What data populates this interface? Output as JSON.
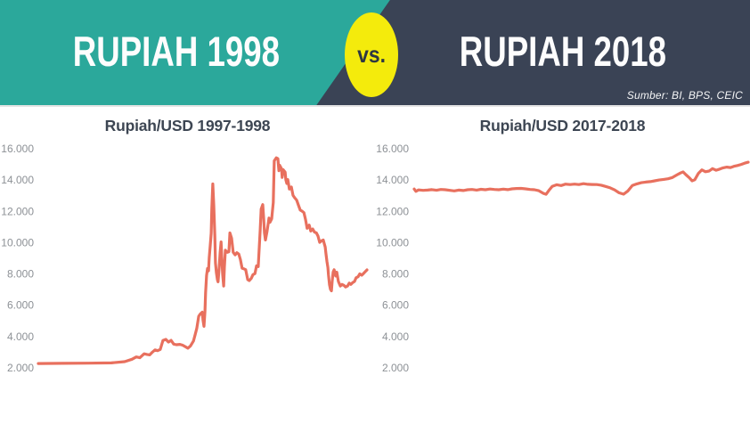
{
  "header": {
    "left_title": "RUPIAH 1998",
    "vs_label": "vs.",
    "right_title": "RUPIAH 2018",
    "source": "Sumber: BI, BPS, CEIC"
  },
  "colors": {
    "teal": "#2BA89B",
    "navy": "#3A4355",
    "yellow": "#F4EB0C",
    "line": "#E8705E",
    "title_text": "#3D4653",
    "axis_text": "#8D9196"
  },
  "chart_data": [
    {
      "type": "line",
      "title": "Rupiah/USD 1997-1998",
      "series_name": "Rupiah per USD",
      "x_period": "1997-1998",
      "x_axis_labels": "none",
      "grid": false,
      "legend": false,
      "ylim": [
        2000,
        16000
      ],
      "y_tick_labels": [
        "16.000",
        "14.000",
        "12.000",
        "10.000",
        "8.000",
        "6.000",
        "4.000",
        "2.000"
      ],
      "y_tick_values": [
        16000,
        14000,
        12000,
        10000,
        8000,
        6000,
        4000,
        2000
      ],
      "points": [
        [
          0,
          2280
        ],
        [
          0.073,
          2290
        ],
        [
          0.154,
          2300
        ],
        [
          0.222,
          2320
        ],
        [
          0.263,
          2400
        ],
        [
          0.285,
          2550
        ],
        [
          0.298,
          2700
        ],
        [
          0.309,
          2650
        ],
        [
          0.322,
          2900
        ],
        [
          0.331,
          2860
        ],
        [
          0.339,
          2830
        ],
        [
          0.347,
          3000
        ],
        [
          0.355,
          3150
        ],
        [
          0.363,
          3100
        ],
        [
          0.371,
          3180
        ],
        [
          0.379,
          3750
        ],
        [
          0.388,
          3820
        ],
        [
          0.396,
          3650
        ],
        [
          0.404,
          3760
        ],
        [
          0.412,
          3520
        ],
        [
          0.42,
          3480
        ],
        [
          0.431,
          3500
        ],
        [
          0.439,
          3450
        ],
        [
          0.447,
          3360
        ],
        [
          0.455,
          3260
        ],
        [
          0.463,
          3400
        ],
        [
          0.472,
          3720
        ],
        [
          0.477,
          4100
        ],
        [
          0.482,
          4520
        ],
        [
          0.488,
          5300
        ],
        [
          0.493,
          5450
        ],
        [
          0.499,
          5560
        ],
        [
          0.501,
          5050
        ],
        [
          0.504,
          4650
        ],
        [
          0.507,
          5600
        ],
        [
          0.509,
          6800
        ],
        [
          0.512,
          7900
        ],
        [
          0.515,
          8350
        ],
        [
          0.518,
          8200
        ],
        [
          0.52,
          9050
        ],
        [
          0.523,
          9800
        ],
        [
          0.526,
          10600
        ],
        [
          0.528,
          12200
        ],
        [
          0.531,
          13750
        ],
        [
          0.534,
          12400
        ],
        [
          0.537,
          10400
        ],
        [
          0.539,
          8700
        ],
        [
          0.542,
          8050
        ],
        [
          0.545,
          7620
        ],
        [
          0.547,
          7500
        ],
        [
          0.55,
          8350
        ],
        [
          0.553,
          9350
        ],
        [
          0.556,
          10050
        ],
        [
          0.558,
          9150
        ],
        [
          0.561,
          7950
        ],
        [
          0.564,
          7230
        ],
        [
          0.566,
          8400
        ],
        [
          0.569,
          9520
        ],
        [
          0.575,
          9380
        ],
        [
          0.58,
          9420
        ],
        [
          0.583,
          10620
        ],
        [
          0.588,
          10280
        ],
        [
          0.593,
          9380
        ],
        [
          0.599,
          9220
        ],
        [
          0.604,
          9360
        ],
        [
          0.61,
          9270
        ],
        [
          0.615,
          8920
        ],
        [
          0.62,
          8370
        ],
        [
          0.626,
          8320
        ],
        [
          0.631,
          8280
        ],
        [
          0.637,
          7640
        ],
        [
          0.642,
          7580
        ],
        [
          0.648,
          7720
        ],
        [
          0.653,
          7960
        ],
        [
          0.659,
          8020
        ],
        [
          0.664,
          8520
        ],
        [
          0.669,
          8470
        ],
        [
          0.675,
          10800
        ],
        [
          0.678,
          12150
        ],
        [
          0.683,
          12430
        ],
        [
          0.686,
          11480
        ],
        [
          0.688,
          10620
        ],
        [
          0.691,
          10170
        ],
        [
          0.696,
          10720
        ],
        [
          0.702,
          11570
        ],
        [
          0.705,
          11300
        ],
        [
          0.71,
          11520
        ],
        [
          0.715,
          12560
        ],
        [
          0.718,
          15230
        ],
        [
          0.724,
          15420
        ],
        [
          0.729,
          15360
        ],
        [
          0.732,
          14600
        ],
        [
          0.734,
          14960
        ],
        [
          0.74,
          14720
        ],
        [
          0.742,
          14170
        ],
        [
          0.745,
          14660
        ],
        [
          0.751,
          14510
        ],
        [
          0.753,
          14020
        ],
        [
          0.756,
          13780
        ],
        [
          0.759,
          14030
        ],
        [
          0.764,
          13420
        ],
        [
          0.77,
          13560
        ],
        [
          0.775,
          13020
        ],
        [
          0.78,
          12870
        ],
        [
          0.786,
          12720
        ],
        [
          0.791,
          12420
        ],
        [
          0.797,
          12080
        ],
        [
          0.802,
          12020
        ],
        [
          0.808,
          11920
        ],
        [
          0.813,
          11480
        ],
        [
          0.818,
          10920
        ],
        [
          0.824,
          11120
        ],
        [
          0.829,
          10740
        ],
        [
          0.835,
          10870
        ],
        [
          0.84,
          10680
        ],
        [
          0.846,
          10620
        ],
        [
          0.851,
          10420
        ],
        [
          0.856,
          10020
        ],
        [
          0.862,
          10120
        ],
        [
          0.867,
          10170
        ],
        [
          0.873,
          9720
        ],
        [
          0.875,
          9320
        ],
        [
          0.878,
          8820
        ],
        [
          0.881,
          8420
        ],
        [
          0.883,
          7920
        ],
        [
          0.886,
          7320
        ],
        [
          0.889,
          7020
        ],
        [
          0.892,
          6920
        ],
        [
          0.894,
          7520
        ],
        [
          0.897,
          8120
        ],
        [
          0.9,
          8270
        ],
        [
          0.905,
          7870
        ],
        [
          0.908,
          8120
        ],
        [
          0.913,
          7520
        ],
        [
          0.919,
          7230
        ],
        [
          0.924,
          7330
        ],
        [
          0.93,
          7270
        ],
        [
          0.935,
          7170
        ],
        [
          0.941,
          7230
        ],
        [
          0.946,
          7420
        ],
        [
          0.951,
          7330
        ],
        [
          0.957,
          7460
        ],
        [
          0.962,
          7520
        ],
        [
          0.967,
          7760
        ],
        [
          0.973,
          7820
        ],
        [
          0.978,
          8010
        ],
        [
          0.984,
          7920
        ],
        [
          0.989,
          8020
        ],
        [
          0.995,
          8160
        ],
        [
          1,
          8260
        ]
      ]
    },
    {
      "type": "line",
      "title": "Rupiah/USD 2017-2018",
      "series_name": "Rupiah per USD",
      "x_period": "2017-2018",
      "x_axis_labels": "none",
      "grid": false,
      "legend": false,
      "ylim": [
        2000,
        16000
      ],
      "y_tick_labels": [
        "16.000",
        "14.000",
        "12.000",
        "10.000",
        "8.000",
        "6.000",
        "4.000",
        "2.000"
      ],
      "y_tick_values": [
        16000,
        14000,
        12000,
        10000,
        8000,
        6000,
        4000,
        2000
      ],
      "points": [
        [
          0,
          13430
        ],
        [
          0.005,
          13280
        ],
        [
          0.013,
          13370
        ],
        [
          0.027,
          13340
        ],
        [
          0.04,
          13360
        ],
        [
          0.053,
          13390
        ],
        [
          0.067,
          13350
        ],
        [
          0.08,
          13400
        ],
        [
          0.093,
          13380
        ],
        [
          0.107,
          13340
        ],
        [
          0.12,
          13310
        ],
        [
          0.133,
          13360
        ],
        [
          0.147,
          13330
        ],
        [
          0.16,
          13380
        ],
        [
          0.173,
          13400
        ],
        [
          0.187,
          13360
        ],
        [
          0.2,
          13410
        ],
        [
          0.213,
          13380
        ],
        [
          0.227,
          13430
        ],
        [
          0.24,
          13400
        ],
        [
          0.253,
          13380
        ],
        [
          0.267,
          13420
        ],
        [
          0.28,
          13390
        ],
        [
          0.293,
          13440
        ],
        [
          0.307,
          13460
        ],
        [
          0.32,
          13470
        ],
        [
          0.333,
          13440
        ],
        [
          0.347,
          13400
        ],
        [
          0.36,
          13380
        ],
        [
          0.373,
          13320
        ],
        [
          0.387,
          13150
        ],
        [
          0.395,
          13090
        ],
        [
          0.403,
          13330
        ],
        [
          0.413,
          13590
        ],
        [
          0.427,
          13700
        ],
        [
          0.44,
          13650
        ],
        [
          0.453,
          13740
        ],
        [
          0.467,
          13710
        ],
        [
          0.48,
          13740
        ],
        [
          0.493,
          13710
        ],
        [
          0.507,
          13770
        ],
        [
          0.52,
          13730
        ],
        [
          0.533,
          13720
        ],
        [
          0.547,
          13710
        ],
        [
          0.56,
          13670
        ],
        [
          0.573,
          13590
        ],
        [
          0.587,
          13500
        ],
        [
          0.6,
          13370
        ],
        [
          0.613,
          13190
        ],
        [
          0.627,
          13100
        ],
        [
          0.64,
          13310
        ],
        [
          0.653,
          13650
        ],
        [
          0.667,
          13760
        ],
        [
          0.68,
          13830
        ],
        [
          0.693,
          13870
        ],
        [
          0.707,
          13900
        ],
        [
          0.72,
          13950
        ],
        [
          0.733,
          14000
        ],
        [
          0.747,
          14040
        ],
        [
          0.76,
          14080
        ],
        [
          0.773,
          14160
        ],
        [
          0.787,
          14330
        ],
        [
          0.797,
          14450
        ],
        [
          0.805,
          14520
        ],
        [
          0.813,
          14350
        ],
        [
          0.824,
          14140
        ],
        [
          0.832,
          13950
        ],
        [
          0.84,
          14020
        ],
        [
          0.851,
          14430
        ],
        [
          0.861,
          14650
        ],
        [
          0.872,
          14530
        ],
        [
          0.883,
          14580
        ],
        [
          0.893,
          14730
        ],
        [
          0.904,
          14630
        ],
        [
          0.915,
          14700
        ],
        [
          0.925,
          14780
        ],
        [
          0.936,
          14830
        ],
        [
          0.947,
          14800
        ],
        [
          0.957,
          14880
        ],
        [
          0.968,
          14930
        ],
        [
          0.979,
          15000
        ],
        [
          0.989,
          15080
        ],
        [
          1,
          15140
        ]
      ]
    }
  ]
}
